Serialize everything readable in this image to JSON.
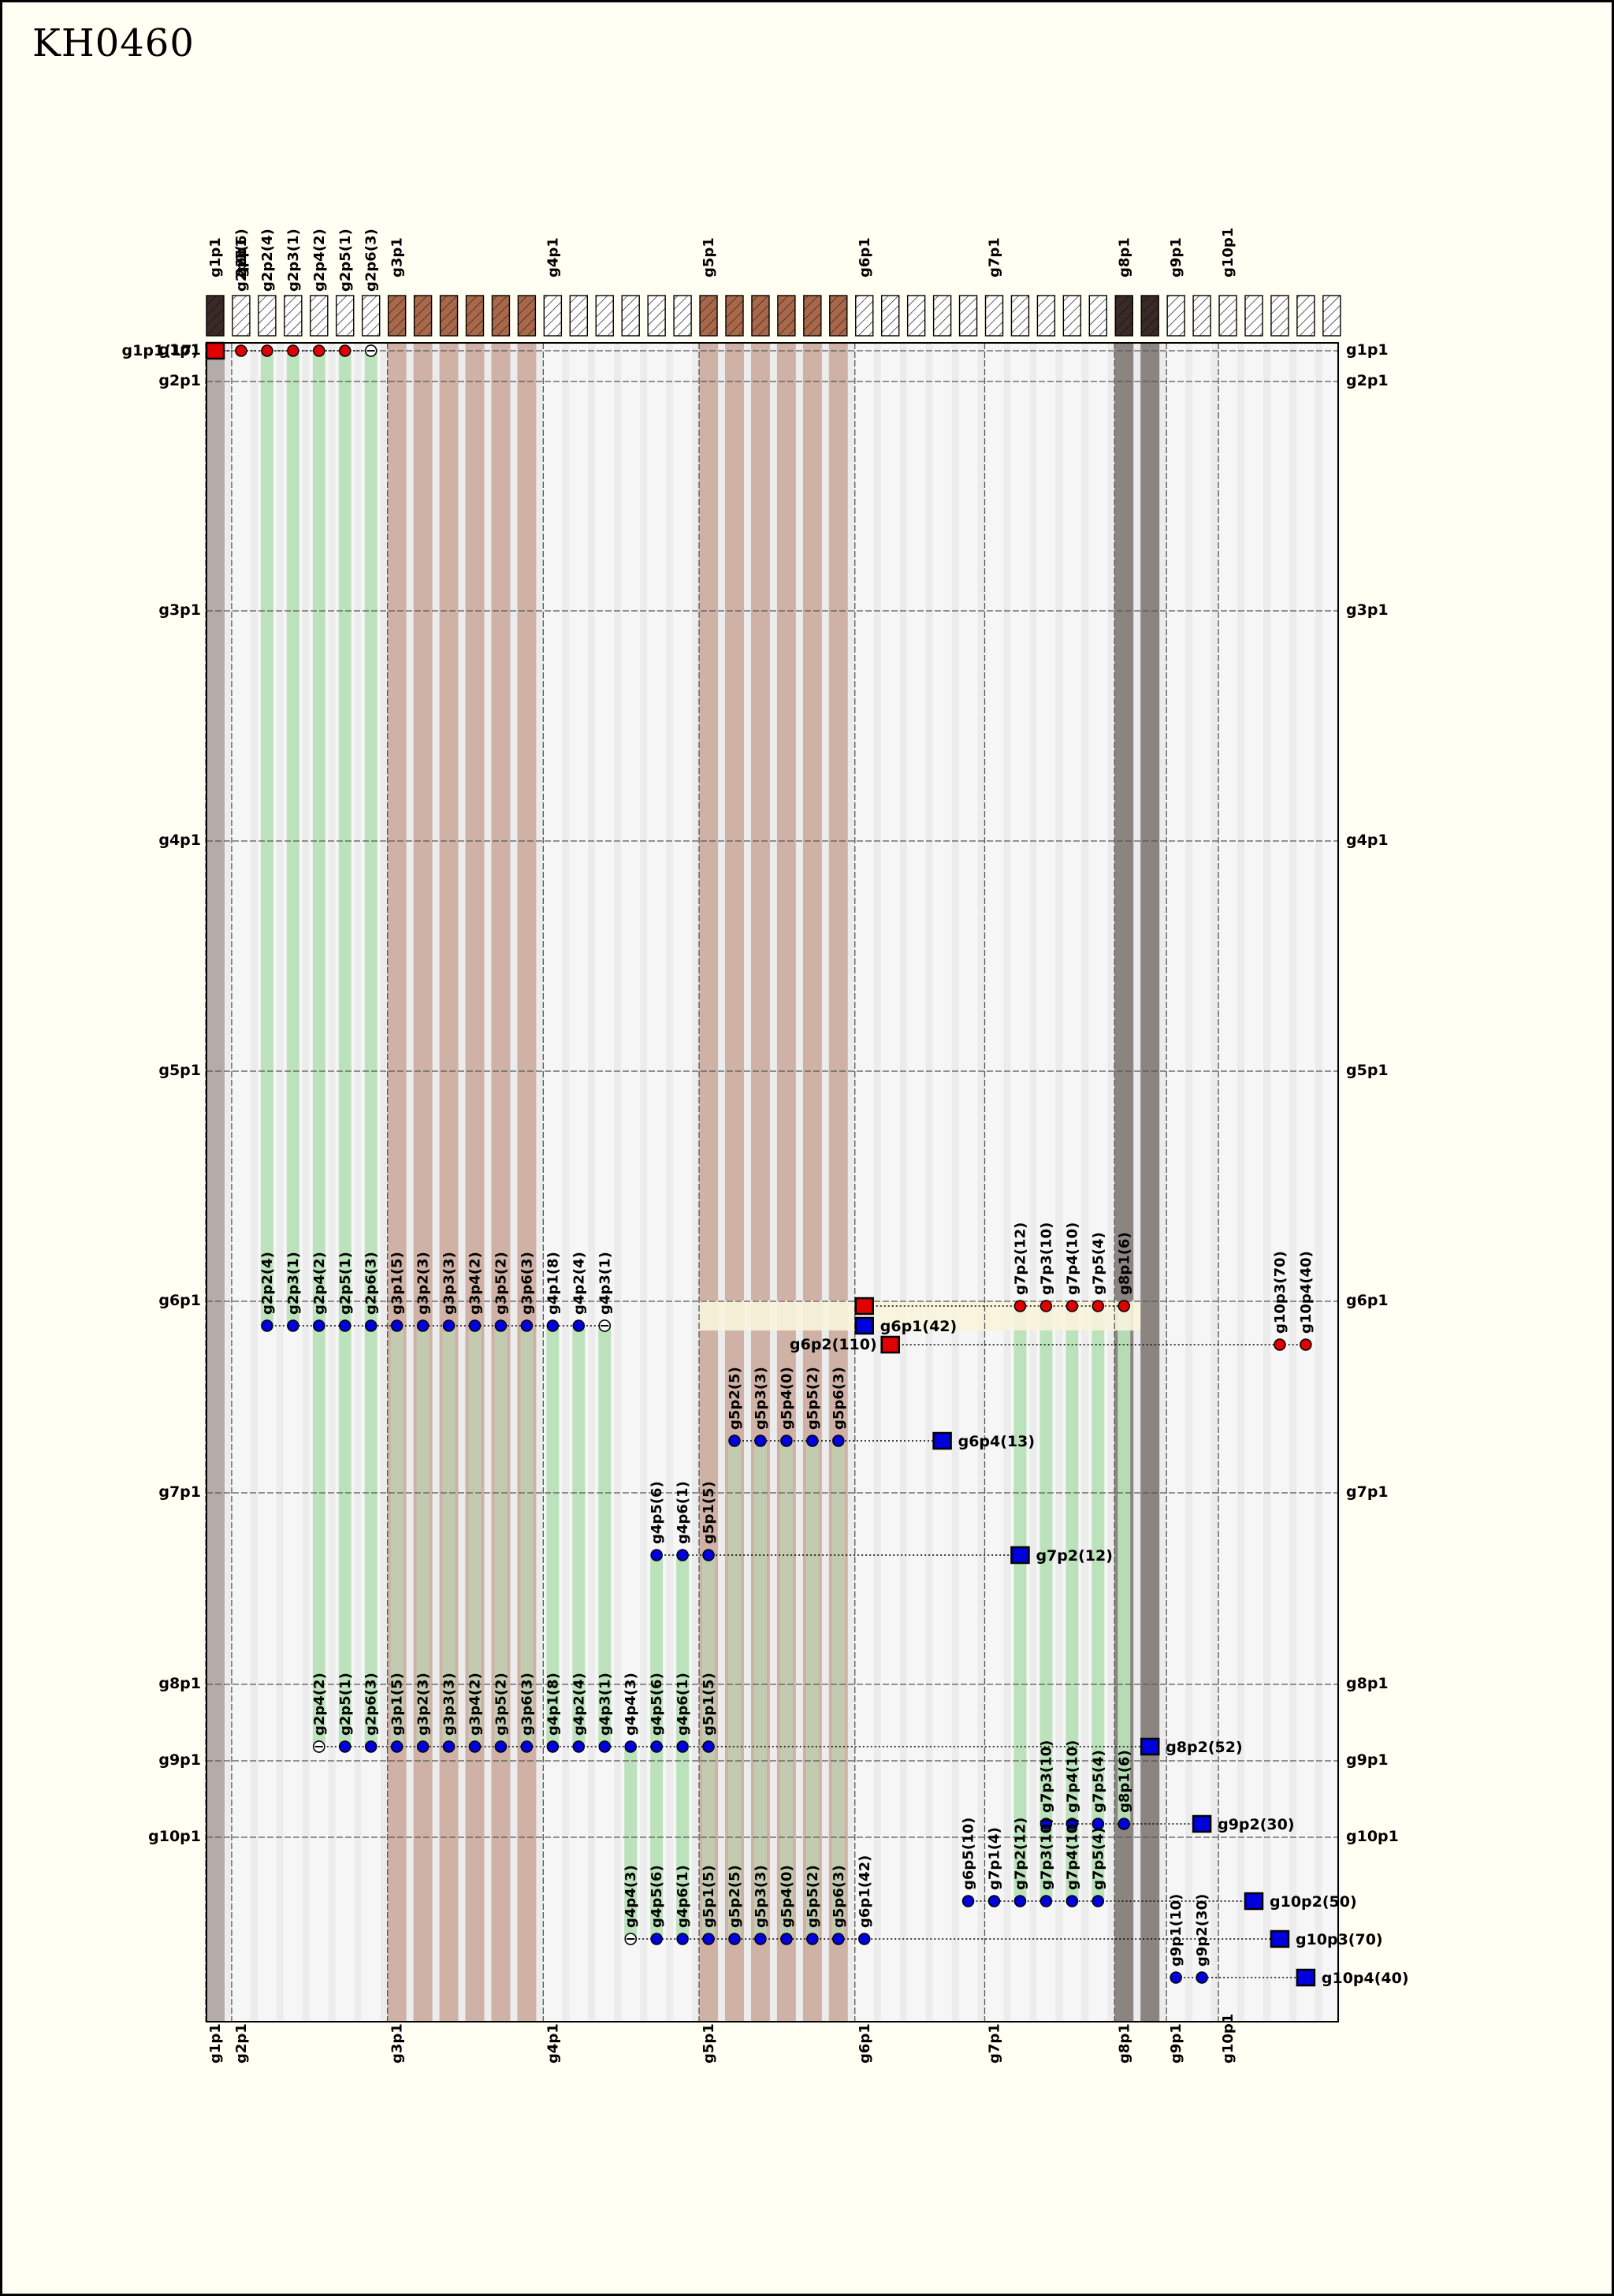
{
  "title": "KH0460",
  "colors": {
    "background": "#fffff4",
    "grid_bg": "#ececec",
    "stripe_light": "#f6f6f6",
    "band_brown": "#cfb2a5",
    "band_gray": "#b5aba8",
    "band_dark": "#8c8481",
    "band_green": "#b8e0b8",
    "band_olive": "#a9ad8b",
    "highlight": "#f8f4dc",
    "donor": "#e00000",
    "acceptor": "#0000dd"
  },
  "columns": [
    {
      "label": "g1p1",
      "box": "dark",
      "band": "gray",
      "hdr": true
    },
    {
      "label": "g2p1",
      "box": "empty",
      "band": "none",
      "hdr": true
    },
    {
      "label": "",
      "box": "empty",
      "band": "green"
    },
    {
      "label": "",
      "box": "empty",
      "band": "green"
    },
    {
      "label": "",
      "box": "empty",
      "band": "green"
    },
    {
      "label": "",
      "box": "empty",
      "band": "green"
    },
    {
      "label": "",
      "box": "empty",
      "band": "green"
    },
    {
      "label": "g3p1",
      "box": "brown",
      "band": "brown",
      "hdr": true
    },
    {
      "label": "",
      "box": "brown",
      "band": "brown"
    },
    {
      "label": "",
      "box": "brown",
      "band": "brown"
    },
    {
      "label": "",
      "box": "brown",
      "band": "brown"
    },
    {
      "label": "",
      "box": "brown",
      "band": "brown"
    },
    {
      "label": "",
      "box": "brown",
      "band": "brown"
    },
    {
      "label": "g4p1",
      "box": "empty",
      "band": "none",
      "hdr": true
    },
    {
      "label": "",
      "box": "empty",
      "band": "none"
    },
    {
      "label": "",
      "box": "empty",
      "band": "none"
    },
    {
      "label": "",
      "box": "empty",
      "band": "none"
    },
    {
      "label": "",
      "box": "empty",
      "band": "none"
    },
    {
      "label": "",
      "box": "empty",
      "band": "none"
    },
    {
      "label": "g5p1",
      "box": "brown",
      "band": "brown",
      "hdr": true
    },
    {
      "label": "",
      "box": "brown",
      "band": "brown"
    },
    {
      "label": "",
      "box": "brown",
      "band": "brown"
    },
    {
      "label": "",
      "box": "brown",
      "band": "brown"
    },
    {
      "label": "",
      "box": "brown",
      "band": "brown"
    },
    {
      "label": "",
      "box": "brown",
      "band": "brown"
    },
    {
      "label": "g6p1",
      "box": "empty",
      "band": "none",
      "hdr": true
    },
    {
      "label": "",
      "box": "empty",
      "band": "none"
    },
    {
      "label": "",
      "box": "empty",
      "band": "none"
    },
    {
      "label": "",
      "box": "empty",
      "band": "none"
    },
    {
      "label": "",
      "box": "empty",
      "band": "none"
    },
    {
      "label": "g7p1",
      "box": "empty",
      "band": "none",
      "hdr": true
    },
    {
      "label": "",
      "box": "empty",
      "band": "none"
    },
    {
      "label": "",
      "box": "empty",
      "band": "none"
    },
    {
      "label": "",
      "box": "empty",
      "band": "none"
    },
    {
      "label": "",
      "box": "empty",
      "band": "none"
    },
    {
      "label": "g8p1",
      "box": "dark",
      "band": "dark",
      "hdr": true
    },
    {
      "label": "",
      "box": "dark",
      "band": "dark"
    },
    {
      "label": "g9p1",
      "box": "empty",
      "band": "none",
      "hdr": true
    },
    {
      "label": "",
      "box": "empty",
      "band": "none"
    },
    {
      "label": "g10p1",
      "box": "empty",
      "band": "none",
      "hdr": true
    },
    {
      "label": "",
      "box": "empty",
      "band": "none"
    },
    {
      "label": "",
      "box": "empty",
      "band": "none"
    },
    {
      "label": "",
      "box": "empty",
      "band": "none"
    },
    {
      "label": "",
      "box": "empty",
      "band": "none"
    }
  ],
  "top_labels": [
    "g1p1",
    "g2p1(6)",
    "g2p2(4)",
    "g2p3(1)",
    "g2p4(2)",
    "g2p5(1)",
    "g2p6(3)",
    "g3p1",
    "g4p1",
    "g5p1",
    "g6p1",
    "g7p1",
    "g8p1",
    "g9p1",
    "g10p1",
    "2p1"
  ],
  "row_labels": [
    "g1p1",
    "g2p1",
    "g3p1",
    "g4p1",
    "g5p1",
    "g6p1",
    "g7p1",
    "g8p1",
    "g9p1",
    "g10p1"
  ],
  "bottom_labels": [
    "g1p1",
    "g2p1",
    "g3p1",
    "g4p1",
    "g5p1",
    "g6p1",
    "g7p1",
    "g8p1",
    "g9p1",
    "g10p1"
  ],
  "markers": [
    {
      "text": "g1p1(17)",
      "kind": "sq-red"
    },
    {
      "text": "g6p1(42)",
      "kind": "sq-blue"
    },
    {
      "text": "g6p2(110)",
      "kind": "sq-red"
    },
    {
      "text": "g6p4(13)",
      "kind": "sq-blue"
    },
    {
      "text": "g7p2(12)",
      "kind": "sq-blue"
    },
    {
      "text": "g8p2(52)",
      "kind": "sq-blue"
    },
    {
      "text": "g9p2(30)",
      "kind": "sq-blue"
    },
    {
      "text": "g10p2(50)",
      "kind": "sq-blue"
    },
    {
      "text": "g10p3(70)",
      "kind": "sq-blue"
    },
    {
      "text": "g10p4(40)",
      "kind": "sq-blue"
    }
  ],
  "dot_rows": [
    {
      "name": "row-g1",
      "color": "red",
      "labels": []
    },
    {
      "name": "row-g6-donor",
      "color": "red",
      "labels": [
        "g7p2(12)",
        "g7p3(10)",
        "g7p4(10)",
        "g7p5(4)",
        "g8p1(6)"
      ]
    },
    {
      "name": "row-g6-donor-right",
      "color": "red",
      "labels": [
        "g10p3(70)",
        "g10p4(40)"
      ]
    },
    {
      "name": "row-g6-acceptor",
      "color": "blue",
      "labels": [
        "g2p2(4)",
        "g2p3(1)",
        "g2p4(2)",
        "g2p5(1)",
        "g2p6(3)",
        "g3p1(5)",
        "g3p2(3)",
        "g3p3(3)",
        "g3p4(2)",
        "g3p5(2)",
        "g3p6(3)",
        "g4p1(8)",
        "g4p2(4)",
        "g4p3(1)"
      ]
    },
    {
      "name": "row-g6p4",
      "color": "blue",
      "labels": [
        "g5p2(5)",
        "g5p3(3)",
        "g5p4(0)",
        "g5p5(2)",
        "g5p6(3)"
      ]
    },
    {
      "name": "row-g7p2",
      "color": "blue",
      "labels": [
        "g4p5(6)",
        "g4p6(1)",
        "g5p1(5)"
      ]
    },
    {
      "name": "row-g8p2",
      "color": "blue",
      "labels": [
        "g2p4(2)",
        "g2p5(1)",
        "g2p6(3)",
        "g3p1(5)",
        "g3p2(3)",
        "g3p3(3)",
        "g3p4(2)",
        "g3p5(2)",
        "g3p6(3)",
        "g4p1(8)",
        "g4p2(4)",
        "g4p3(1)",
        "g4p4(3)",
        "g4p5(6)",
        "g4p6(1)",
        "g5p1(5)"
      ]
    },
    {
      "name": "row-g9p2",
      "color": "blue",
      "labels": [
        "g7p3(10)",
        "g7p4(10)",
        "g7p5(4)",
        "g8p1(6)"
      ]
    },
    {
      "name": "row-g10p2",
      "color": "blue",
      "labels": [
        "g6p5(10)",
        "g7p1(4)",
        "g7p2(12)",
        "g7p3(10)",
        "g7p4(10)",
        "g7p5(4)"
      ]
    },
    {
      "name": "row-g10p3",
      "color": "blue",
      "labels": [
        "g4p4(3)",
        "g4p5(6)",
        "g4p6(1)",
        "g5p1(5)",
        "g5p2(5)",
        "g5p3(3)",
        "g5p4(0)",
        "g5p5(2)",
        "g5p6(3)",
        "g6p1(42)"
      ]
    },
    {
      "name": "row-g10p4",
      "color": "blue",
      "labels": [
        "g9p1(10)",
        "g9p2(30)"
      ]
    }
  ]
}
